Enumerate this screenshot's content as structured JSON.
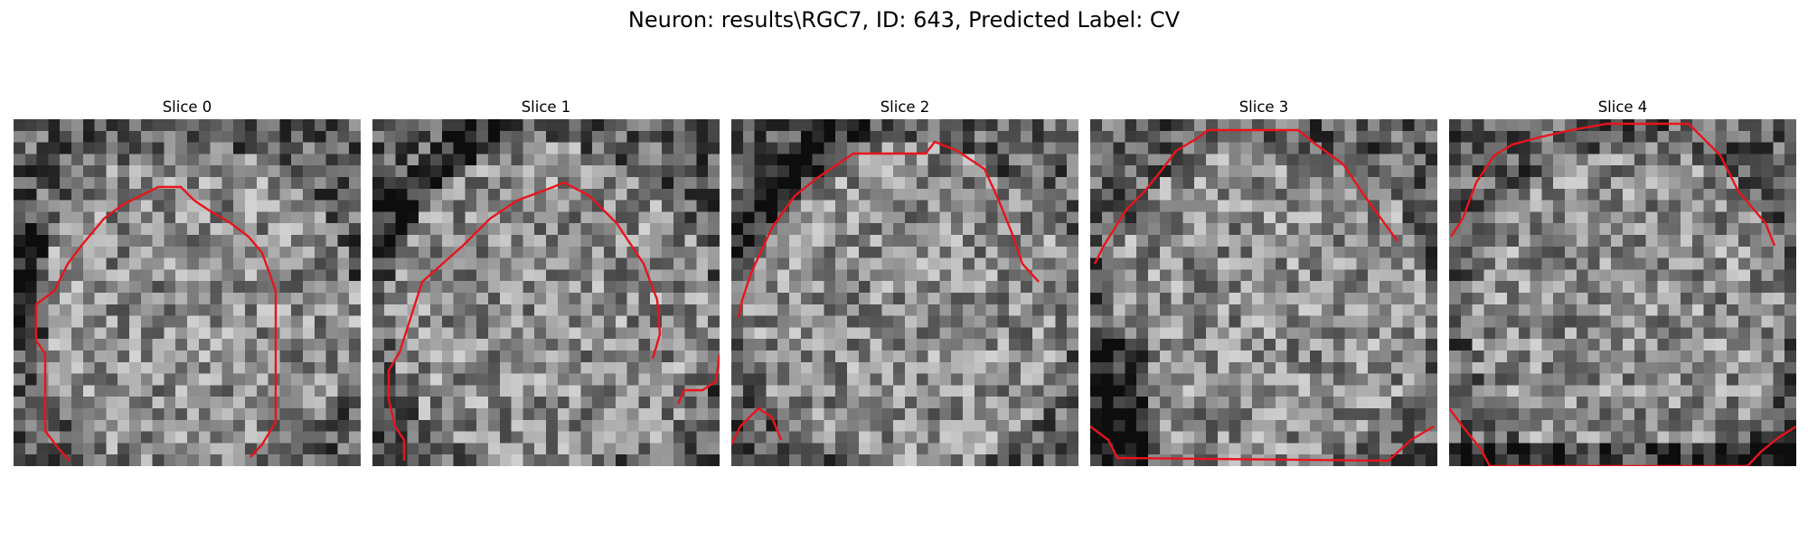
{
  "figure": {
    "title": "Neuron: results\\RGC7, ID: 643, Predicted Label: CV",
    "contour_color": "#e8141c"
  },
  "slices": [
    {
      "label": "Slice 0",
      "seed": 11,
      "dark_side": "left"
    },
    {
      "label": "Slice 1",
      "seed": 23,
      "dark_side": "top-left"
    },
    {
      "label": "Slice 2",
      "seed": 37,
      "dark_side": "top-left"
    },
    {
      "label": "Slice 3",
      "seed": 41,
      "dark_side": "bottom-left"
    },
    {
      "label": "Slice 4",
      "seed": 59,
      "dark_side": "bottom"
    }
  ]
}
